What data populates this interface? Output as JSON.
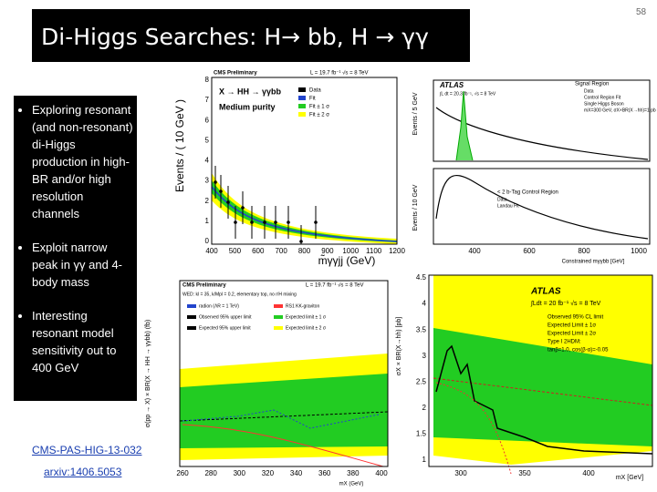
{
  "header": {
    "title": "Di-Higgs Searches: H→ bb, H → γγ",
    "page_number": "58"
  },
  "bullets": [
    "Exploring resonant (and non-resonant) di-Higgs production in high-BR and/or high resolution channels",
    "Exploit narrow peak in γγ and 4-body mass",
    "Interesting resonant model sensitivity out to 400 GeV"
  ],
  "links": [
    "CMS-PAS-HIG-13-032",
    "arxiv:1406.5053"
  ],
  "plot_cms_fit": {
    "header": "CMS Preliminary",
    "lumi": "L = 19.7 fb⁻¹   √s = 8 TeV",
    "process": "X → HH → γγbb",
    "purity": "Medium purity",
    "y_label": "Events / ( 10 GeV )",
    "x_label": "m̃γγjj (GeV)",
    "legend": [
      "Data",
      "Fit",
      "Fit ± 1 σ",
      "Fit ± 2 σ"
    ],
    "yticks": [
      "0",
      "1",
      "2",
      "3",
      "4",
      "5",
      "6",
      "7",
      "8"
    ],
    "xticks": [
      "400",
      "500",
      "600",
      "700",
      "800",
      "900",
      "1000",
      "1100",
      "1200"
    ]
  },
  "plot_atlas_fit": {
    "header": "ATLAS",
    "lumi": "∫L dt = 20.3 fb⁻¹, √s = 8 TeV",
    "region": "Signal Region",
    "legend": [
      "Data",
      "Control Region Fit",
      "Single Higgs Boson",
      "mX=300 GeV, σX×BR(X→hh)=1 pb"
    ],
    "control": "< 2 b-Tag Control Region",
    "legend2": [
      "Data",
      "Landau Fit"
    ],
    "y_label": "Events / 5 GeV",
    "y_label2": "Events / 10 GeV",
    "x_label": "Constrained mγγbb [GeV]",
    "xticks": [
      "400",
      "600",
      "800",
      "1000"
    ]
  },
  "plot_cms_limit": {
    "header": "CMS Preliminary",
    "lumi": "L = 19.7 fb⁻¹   √s = 8 TeV",
    "model": "WED: kl = 35, k/Mpl = 0.2, elementary top, no r/H mixing",
    "legend": [
      "radion (ΛR = 1 TeV)",
      "Observed 95% upper limit",
      "Expected 95% upper limit",
      "RS1 KK-graviton",
      "Expected limit ± 1 σ",
      "Expected limit ± 2 σ"
    ],
    "y_label": "σ(pp → X) × BR(X → HH → γγbb) (fb)",
    "x_label": "mX (GeV)",
    "xticks": [
      "260",
      "280",
      "300",
      "320",
      "340",
      "360",
      "380",
      "400"
    ]
  },
  "plot_atlas_limit": {
    "header": "ATLAS",
    "lumi": "∫Ldt = 20 fb⁻¹  √s = 8 TeV",
    "legend": [
      "Observed 95% CL limit",
      "Expected Limit ± 1σ",
      "Expected Limit ± 2σ",
      "Type I 2HDM:",
      "tanβ=1.0, cos(β-α)=-0.05"
    ],
    "y_label": "σX × BR(X→hh) [pb]",
    "x_label": "mX [GeV]",
    "yticks": [
      "1",
      "1.5",
      "2",
      "2.5",
      "3",
      "3.5",
      "4",
      "4.5"
    ],
    "xticks": [
      "300",
      "350",
      "400"
    ]
  }
}
